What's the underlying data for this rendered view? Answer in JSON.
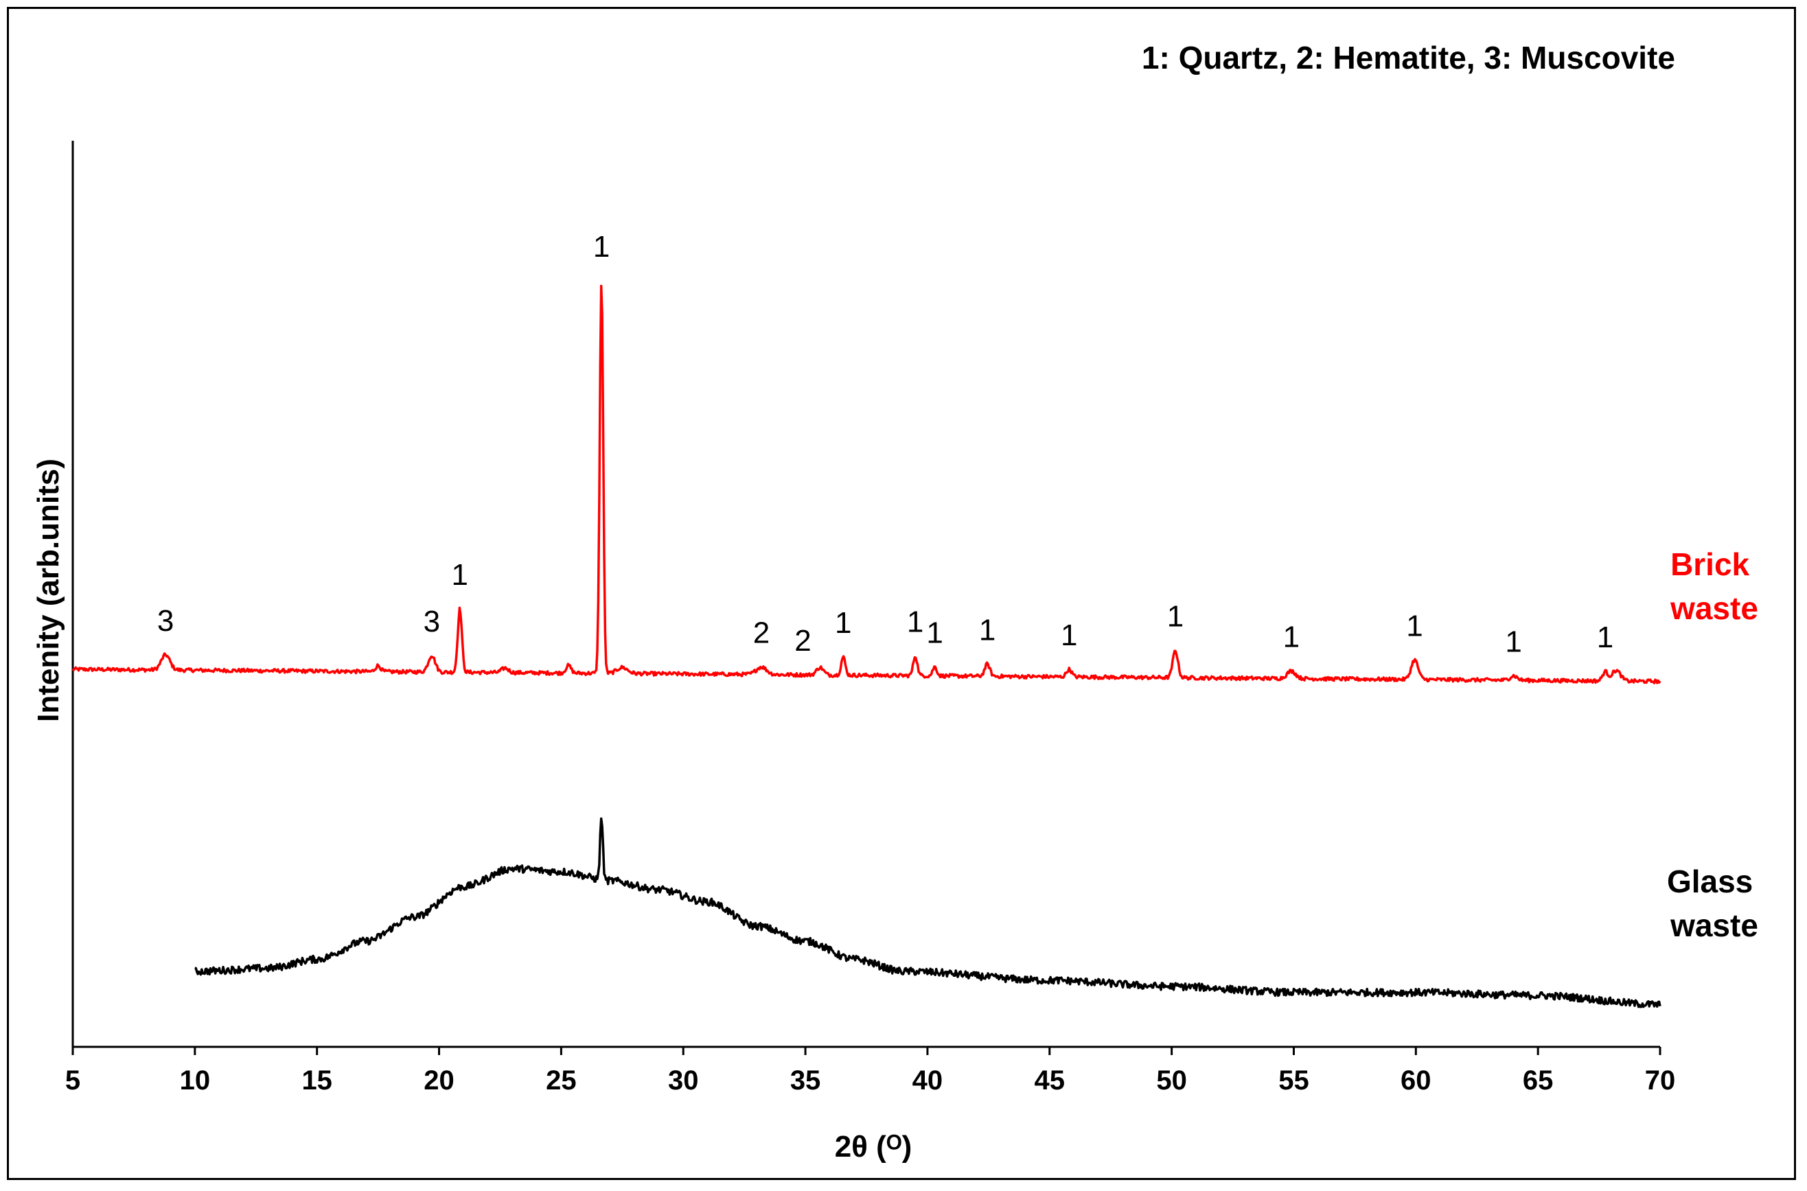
{
  "chart_data": {
    "type": "line",
    "title": "",
    "legend_text": "1: Quartz, 2: Hematite, 3: Muscovite",
    "xlabel": "2θ (ᴼ)",
    "ylabel": "Intenity (arb.units)",
    "xlim": [
      5,
      70
    ],
    "x_ticks": [
      "5",
      "10",
      "15",
      "20",
      "25",
      "30",
      "35",
      "40",
      "45",
      "50",
      "55",
      "60",
      "65",
      "70"
    ],
    "y_ticks_shown": false,
    "series": [
      {
        "name_lines": [
          "Brick",
          "waste"
        ],
        "color": "#ff0000",
        "x_range": [
          5,
          70
        ],
        "baseline": 1.0,
        "drift": -0.04,
        "noise": 0.006,
        "peaks": [
          {
            "x": 8.8,
            "h": 0.05,
            "w": 0.25
          },
          {
            "x": 17.5,
            "h": 0.02,
            "w": 0.15
          },
          {
            "x": 19.7,
            "h": 0.055,
            "w": 0.2
          },
          {
            "x": 20.85,
            "h": 0.21,
            "w": 0.12
          },
          {
            "x": 22.7,
            "h": 0.015,
            "w": 0.2
          },
          {
            "x": 25.3,
            "h": 0.025,
            "w": 0.15
          },
          {
            "x": 26.65,
            "h": 1.3,
            "w": 0.1
          },
          {
            "x": 27.5,
            "h": 0.02,
            "w": 0.3
          },
          {
            "x": 33.2,
            "h": 0.025,
            "w": 0.3
          },
          {
            "x": 35.6,
            "h": 0.025,
            "w": 0.2
          },
          {
            "x": 36.55,
            "h": 0.06,
            "w": 0.12
          },
          {
            "x": 39.5,
            "h": 0.065,
            "w": 0.12
          },
          {
            "x": 40.3,
            "h": 0.03,
            "w": 0.12
          },
          {
            "x": 42.45,
            "h": 0.04,
            "w": 0.15
          },
          {
            "x": 45.8,
            "h": 0.025,
            "w": 0.15
          },
          {
            "x": 50.15,
            "h": 0.09,
            "w": 0.15
          },
          {
            "x": 54.9,
            "h": 0.025,
            "w": 0.25
          },
          {
            "x": 59.95,
            "h": 0.065,
            "w": 0.2
          },
          {
            "x": 64.0,
            "h": 0.015,
            "w": 0.2
          },
          {
            "x": 67.75,
            "h": 0.03,
            "w": 0.15
          },
          {
            "x": 68.2,
            "h": 0.035,
            "w": 0.25
          }
        ]
      },
      {
        "name_lines": [
          "Glass",
          "waste"
        ],
        "color": "#000000",
        "x_range": [
          10,
          70
        ],
        "baseline": 0.0,
        "broad": [
          {
            "x": 10,
            "y": 0.0
          },
          {
            "x": 13,
            "y": 0.01
          },
          {
            "x": 15,
            "y": 0.04
          },
          {
            "x": 17,
            "y": 0.1
          },
          {
            "x": 19,
            "y": 0.18
          },
          {
            "x": 21,
            "y": 0.28
          },
          {
            "x": 23,
            "y": 0.34
          },
          {
            "x": 25,
            "y": 0.33
          },
          {
            "x": 27,
            "y": 0.3
          },
          {
            "x": 29,
            "y": 0.27
          },
          {
            "x": 31,
            "y": 0.23
          },
          {
            "x": 33,
            "y": 0.15
          },
          {
            "x": 35,
            "y": 0.1
          },
          {
            "x": 37,
            "y": 0.04
          },
          {
            "x": 39,
            "y": 0.0
          },
          {
            "x": 45,
            "y": -0.03
          },
          {
            "x": 50,
            "y": -0.05
          },
          {
            "x": 55,
            "y": -0.07
          },
          {
            "x": 60,
            "y": -0.07
          },
          {
            "x": 65,
            "y": -0.08
          },
          {
            "x": 70,
            "y": -0.11
          }
        ],
        "noise": 0.012,
        "peaks": [
          {
            "x": 26.65,
            "h": 0.21,
            "w": 0.08
          }
        ]
      }
    ],
    "peak_labels": [
      {
        "text": "3",
        "x": 8.8
      },
      {
        "text": "3",
        "x": 19.7
      },
      {
        "text": "1",
        "x": 20.85
      },
      {
        "text": "1",
        "x": 26.65
      },
      {
        "text": "2",
        "x": 33.2
      },
      {
        "text": "2",
        "x": 34.9
      },
      {
        "text": "1",
        "x": 36.55
      },
      {
        "text": "1",
        "x": 39.5
      },
      {
        "text": "1",
        "x": 40.3
      },
      {
        "text": "1",
        "x": 42.45
      },
      {
        "text": "1",
        "x": 45.8
      },
      {
        "text": "1",
        "x": 50.15
      },
      {
        "text": "1",
        "x": 54.9
      },
      {
        "text": "1",
        "x": 59.95
      },
      {
        "text": "1",
        "x": 64.0
      },
      {
        "text": "1",
        "x": 67.75
      }
    ]
  }
}
